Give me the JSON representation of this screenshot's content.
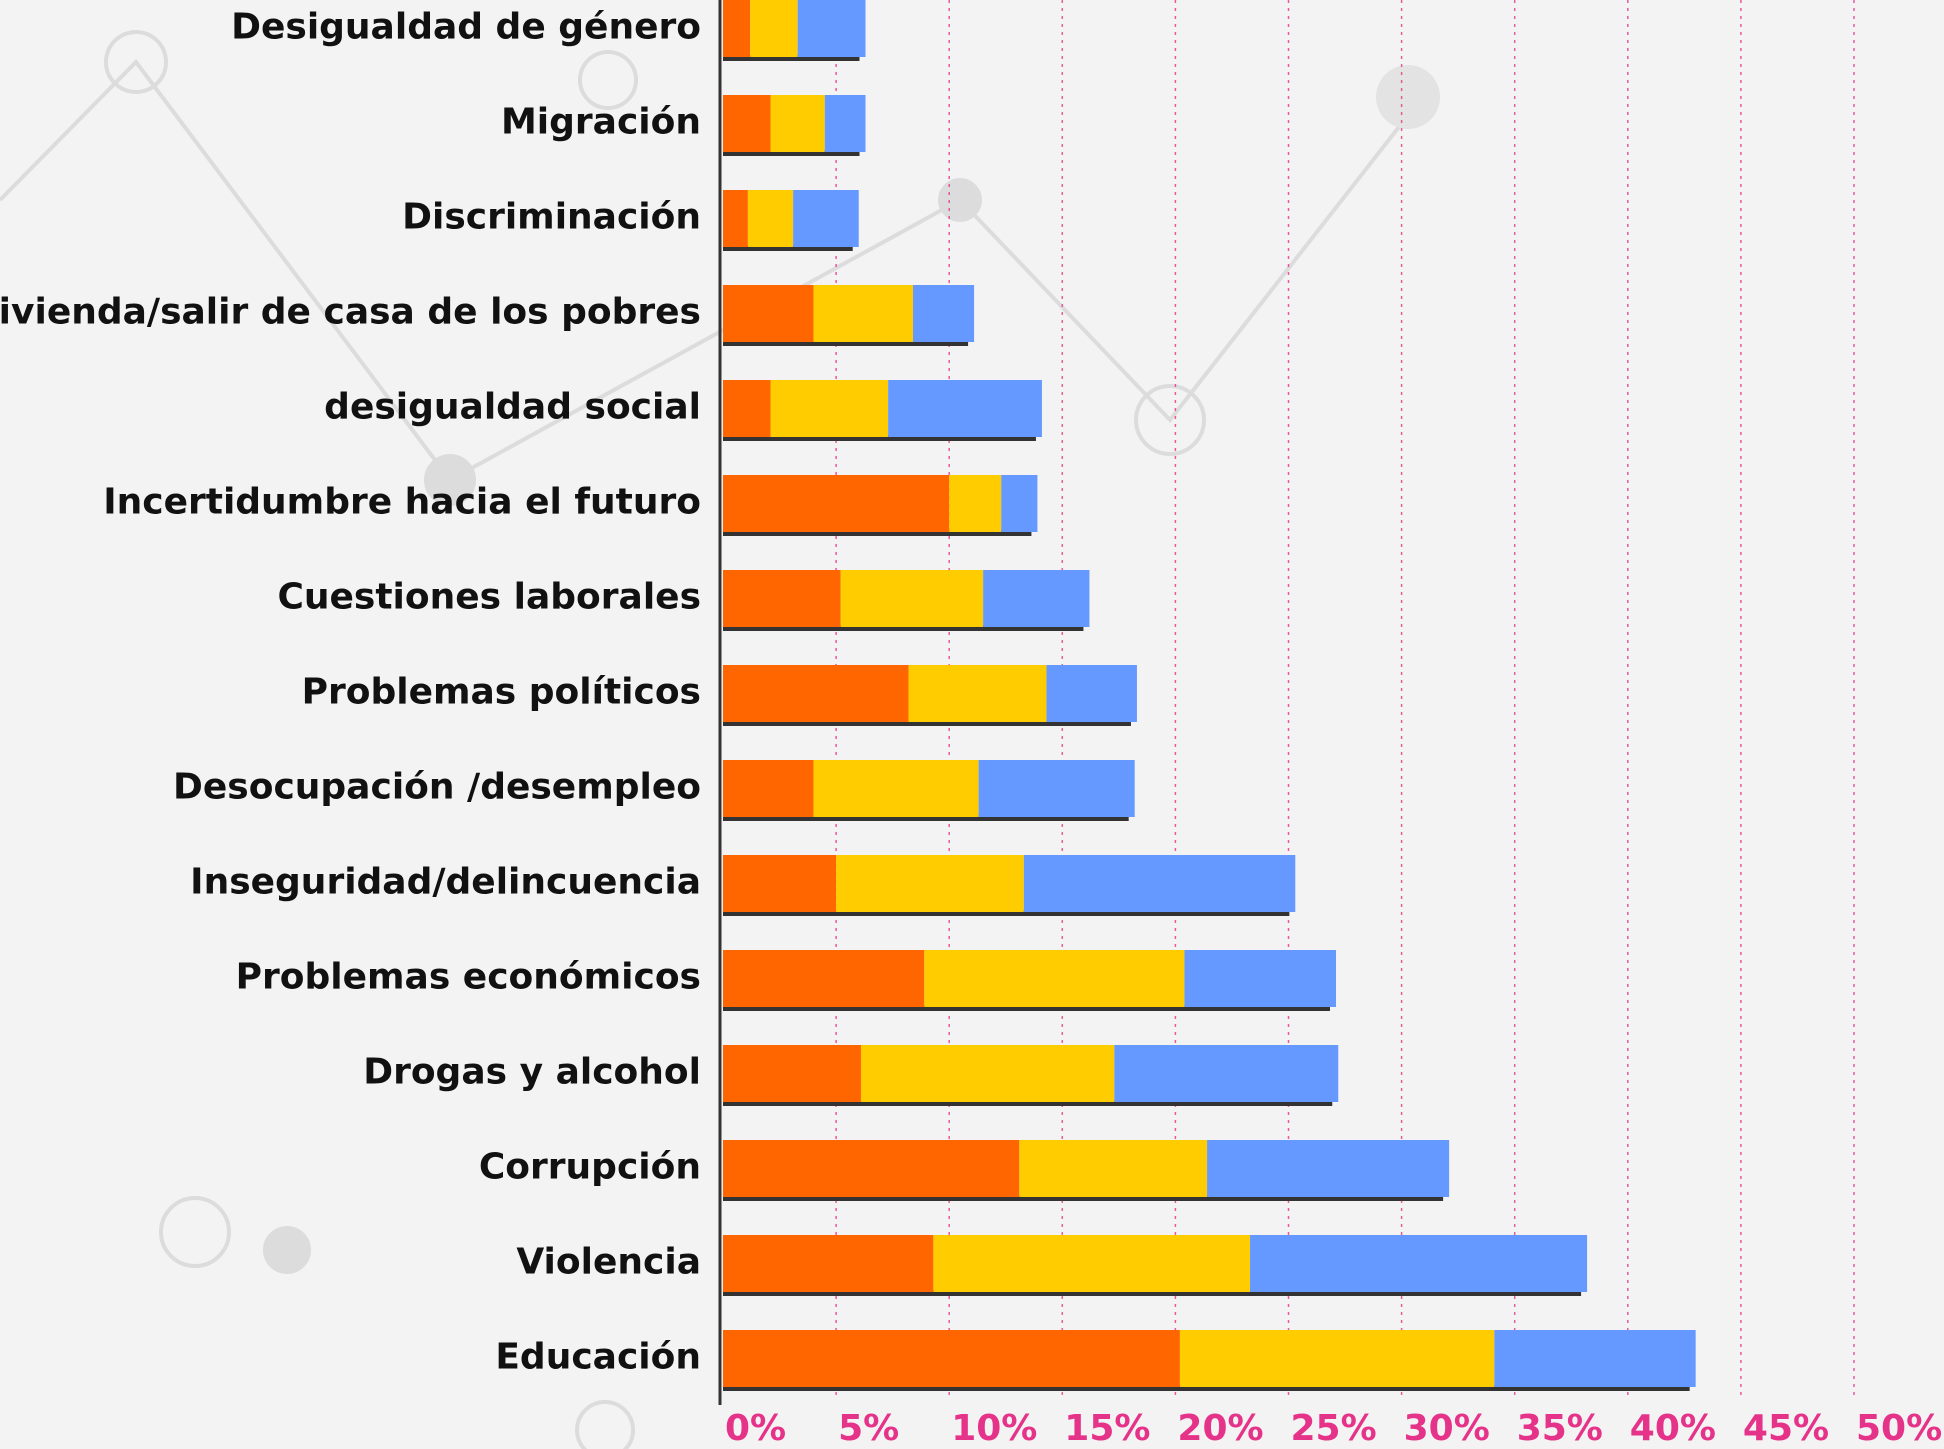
{
  "chart_data": {
    "type": "stacked-barh",
    "categories": [
      "Desigualdad de género",
      "Migración",
      "Discriminación",
      "vivienda/salir de casa de los pobres",
      "desigualdad social",
      "Incertidumbre hacia el futuro",
      "Cuestiones laborales",
      "Problemas políticos",
      "Desocupación /desempleo",
      "Inseguridad/delincuencia",
      "Problemas económicos",
      "Drogas y alcohol",
      "Corrupción",
      "Violencia",
      "Educación"
    ],
    "series": [
      {
        "color": "#ff6600",
        "values": [
          1.2,
          2.1,
          1.1,
          4.0,
          2.1,
          10.0,
          5.2,
          8.2,
          4.0,
          5.0,
          8.9,
          6.1,
          13.1,
          9.3,
          20.2
        ]
      },
      {
        "color": "#ffcc00",
        "values": [
          2.1,
          2.4,
          2.0,
          4.4,
          5.2,
          2.3,
          6.3,
          6.1,
          7.3,
          8.3,
          11.5,
          11.2,
          8.3,
          14.0,
          13.9
        ]
      },
      {
        "color": "#6699ff",
        "values": [
          3.0,
          1.8,
          2.9,
          2.7,
          6.8,
          1.6,
          4.7,
          4.0,
          6.9,
          12.0,
          6.7,
          9.9,
          10.7,
          14.9,
          8.9
        ]
      }
    ],
    "xlim": [
      0,
      50
    ],
    "xticks": [
      {
        "value": 0,
        "label": "0%"
      },
      {
        "value": 5,
        "label": "5%"
      },
      {
        "value": 10,
        "label": "10%"
      },
      {
        "value": 15,
        "label": "15%"
      },
      {
        "value": 20,
        "label": "20%"
      },
      {
        "value": 25,
        "label": "25%"
      },
      {
        "value": 30,
        "label": "30%"
      },
      {
        "value": 35,
        "label": "35%"
      },
      {
        "value": 40,
        "label": "40%"
      },
      {
        "value": 45,
        "label": "45%"
      },
      {
        "value": 50,
        "label": "50%"
      }
    ],
    "grid": true
  }
}
